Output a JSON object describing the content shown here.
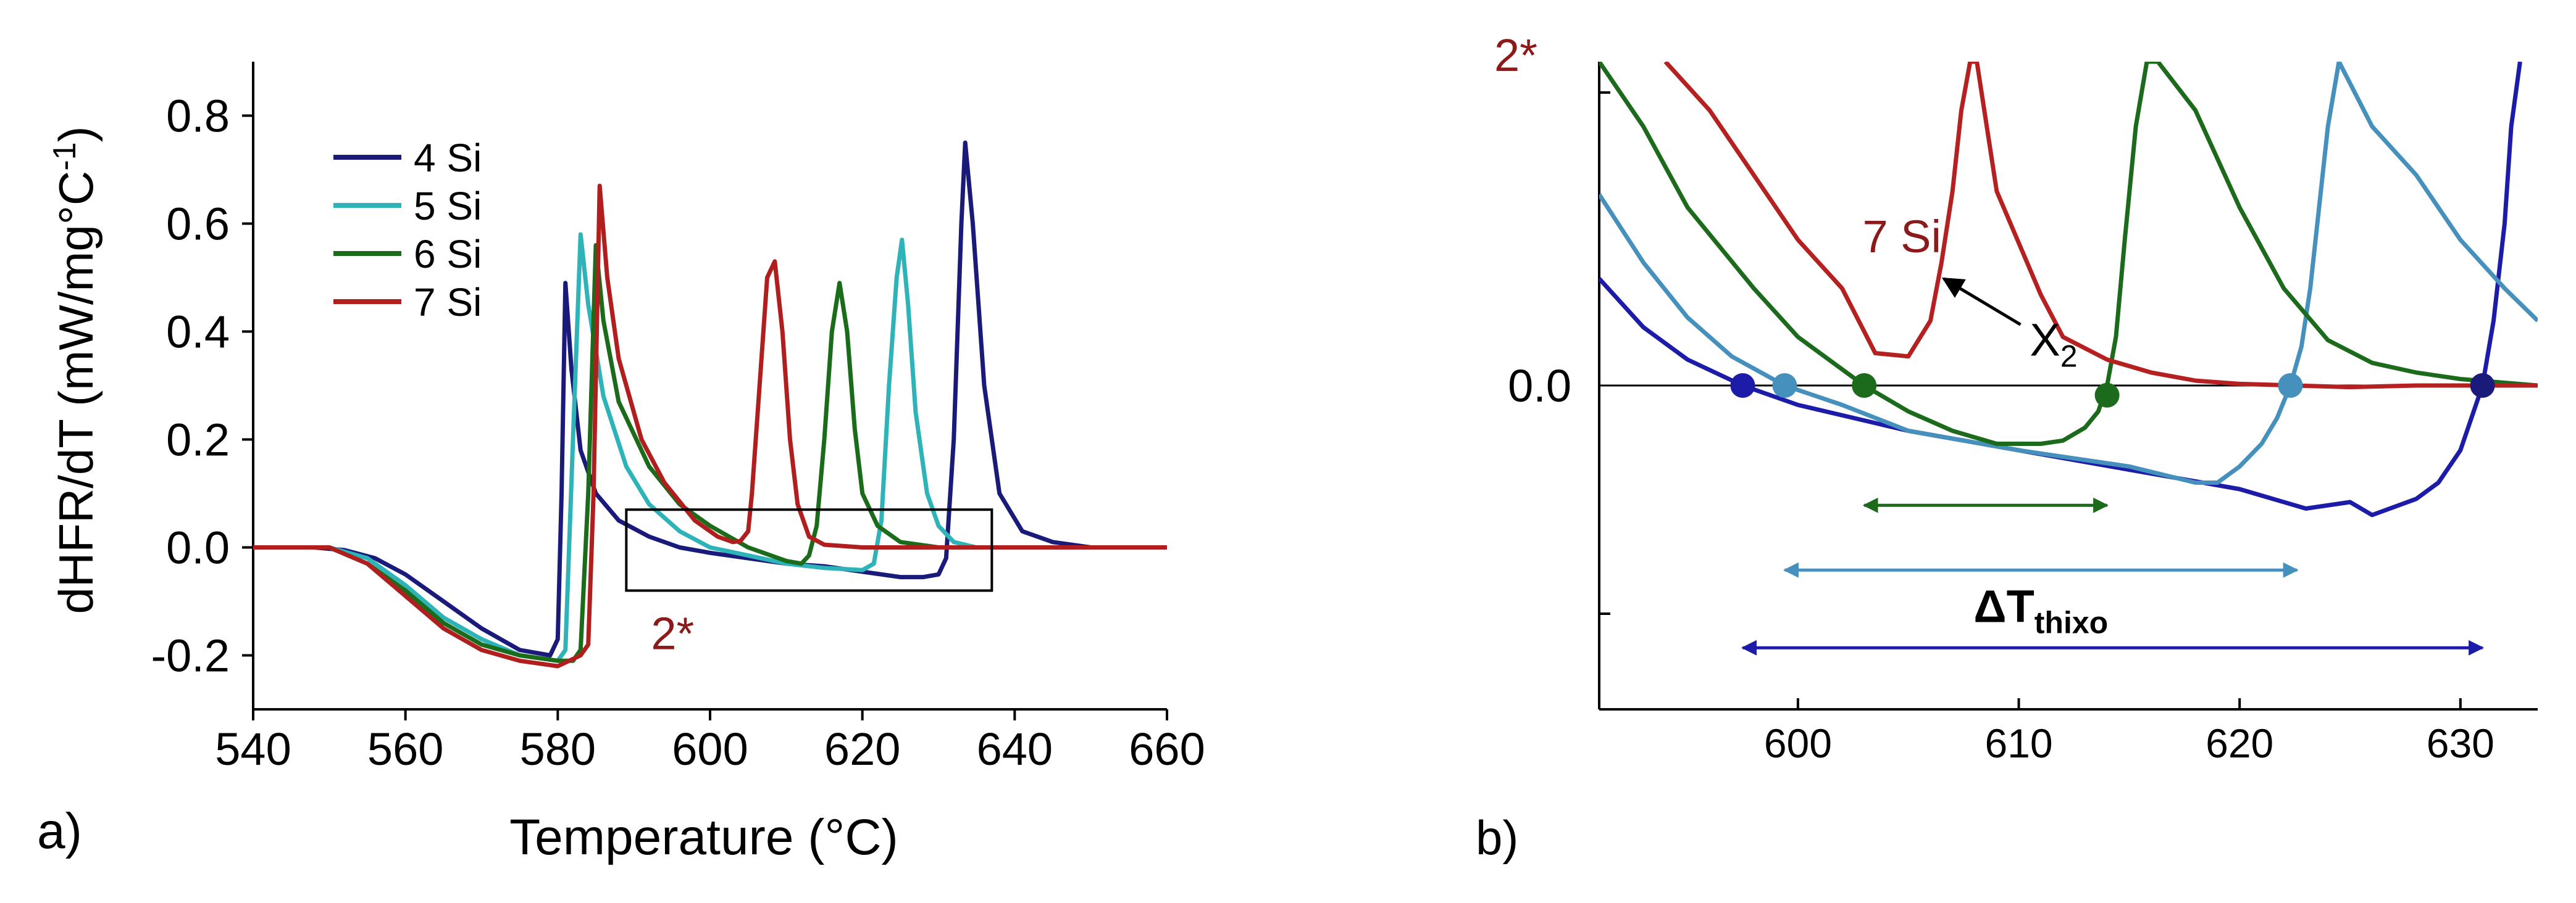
{
  "colors": {
    "s4": "#1a1a7a",
    "s5": "#2db3b8",
    "s6": "#1a6b1a",
    "s7": "#b01e1e",
    "s4_b": "#1c1ca8",
    "s5_b": "#4590bd",
    "s6_b": "#1c6b1c",
    "s7_b": "#b52020",
    "dark_red_label": "#8b1a1a",
    "axis": "#000000"
  },
  "panel_labels": {
    "a": "a)",
    "b": "b)"
  },
  "chart_data": [
    {
      "id": "a",
      "type": "line",
      "xlabel": "Temperature (°C)",
      "ylabel": "dHFR/dT (mW/mg°C",
      "ylabel_sup": "-1",
      "ylabel_close": ")",
      "xlim": [
        540,
        660
      ],
      "ylim": [
        -0.3,
        0.9
      ],
      "xticks": [
        540,
        560,
        580,
        600,
        620,
        640,
        660
      ],
      "yticks": [
        -0.2,
        0.0,
        0.2,
        0.4,
        0.6,
        0.8
      ],
      "ytick_labels": [
        "-0.2",
        "0.0",
        "0.2",
        "0.4",
        "0.6",
        "0.8"
      ],
      "inset_box": {
        "x": [
          589,
          637
        ],
        "y": [
          -0.08,
          0.07
        ],
        "label": "2*"
      },
      "series": [
        {
          "name": "4 Si",
          "color_key": "s4",
          "x": [
            540,
            548,
            552,
            556,
            560,
            565,
            570,
            575,
            579,
            580,
            580.5,
            581,
            581.8,
            583,
            585,
            588,
            592,
            596,
            600,
            605,
            610,
            615,
            620,
            625,
            628,
            630,
            631,
            632,
            633,
            633.5,
            634.5,
            636,
            638,
            641,
            645,
            650,
            660
          ],
          "y": [
            0,
            0,
            -0.005,
            -0.02,
            -0.05,
            -0.1,
            -0.15,
            -0.19,
            -0.2,
            -0.17,
            0.1,
            0.49,
            0.33,
            0.18,
            0.1,
            0.05,
            0.02,
            0.0,
            -0.01,
            -0.02,
            -0.03,
            -0.035,
            -0.045,
            -0.055,
            -0.055,
            -0.05,
            -0.02,
            0.2,
            0.6,
            0.75,
            0.6,
            0.3,
            0.1,
            0.03,
            0.01,
            0,
            0
          ]
        },
        {
          "name": "5 Si",
          "color_key": "s5",
          "x": [
            540,
            550,
            555,
            560,
            565,
            570,
            575,
            580,
            581,
            582,
            583,
            584,
            586,
            589,
            592,
            596,
            600,
            605,
            610,
            615,
            620,
            621.5,
            622.5,
            623.5,
            624.5,
            625.2,
            626,
            627,
            628.5,
            630,
            632,
            635,
            640,
            660
          ],
          "y": [
            0,
            0,
            -0.02,
            -0.07,
            -0.13,
            -0.17,
            -0.2,
            -0.21,
            -0.19,
            0.2,
            0.58,
            0.45,
            0.28,
            0.15,
            0.08,
            0.03,
            0.0,
            -0.015,
            -0.03,
            -0.038,
            -0.042,
            -0.03,
            0.05,
            0.3,
            0.5,
            0.57,
            0.45,
            0.25,
            0.1,
            0.04,
            0.01,
            0,
            0,
            0
          ]
        },
        {
          "name": "6 Si",
          "color_key": "s6",
          "x": [
            540,
            550,
            555,
            560,
            565,
            570,
            575,
            580,
            582,
            583,
            584,
            585,
            586,
            588,
            592,
            596,
            600,
            605,
            610,
            612,
            613,
            614,
            615,
            616,
            617,
            618,
            619,
            620,
            622,
            625,
            630,
            640,
            660
          ],
          "y": [
            0,
            0,
            -0.03,
            -0.08,
            -0.14,
            -0.18,
            -0.2,
            -0.21,
            -0.21,
            -0.19,
            0.1,
            0.56,
            0.42,
            0.27,
            0.15,
            0.08,
            0.04,
            0.0,
            -0.025,
            -0.03,
            -0.015,
            0.04,
            0.2,
            0.4,
            0.49,
            0.4,
            0.22,
            0.1,
            0.04,
            0.01,
            0,
            0,
            0
          ]
        },
        {
          "name": "7 Si",
          "color_key": "s7",
          "x": [
            540,
            550,
            555,
            560,
            565,
            570,
            575,
            580,
            583,
            584,
            584.7,
            585.5,
            586.5,
            588,
            591,
            594,
            598,
            601,
            603,
            604,
            605,
            605.5,
            606.5,
            607.5,
            608.5,
            609.5,
            610.5,
            611.5,
            613,
            615,
            620,
            660
          ],
          "y": [
            0,
            0,
            -0.03,
            -0.09,
            -0.15,
            -0.19,
            -0.21,
            -0.22,
            -0.2,
            -0.18,
            0.1,
            0.67,
            0.5,
            0.35,
            0.2,
            0.12,
            0.05,
            0.02,
            0.01,
            0.012,
            0.03,
            0.1,
            0.3,
            0.5,
            0.53,
            0.4,
            0.2,
            0.08,
            0.02,
            0.005,
            0,
            0
          ]
        }
      ]
    },
    {
      "id": "b",
      "type": "line",
      "title": "2*",
      "xlim": [
        591,
        633.5
      ],
      "ylim": [
        -1.0,
        1.0
      ],
      "xticks": [
        600,
        610,
        620,
        630
      ],
      "yticks": [
        0.0
      ],
      "ytick_labels": [
        "0.0"
      ],
      "annotations": [
        {
          "label": "7 Si",
          "x": 606,
          "y": 0.45
        },
        {
          "label": "X",
          "sub": "2",
          "x": 610.5,
          "y": 0.15,
          "arrow_to_x": 606.6,
          "arrow_to_y": 0.33
        },
        {
          "label": "ΔT",
          "sub": "thixo",
          "x": 611,
          "y": -0.73
        }
      ],
      "ranges": [
        {
          "color_key": "s6_b",
          "x0": 603,
          "x1": 614,
          "y": -0.37
        },
        {
          "color_key": "s5_b",
          "x0": 599.4,
          "x1": 622.6,
          "y": -0.57
        },
        {
          "color_key": "s4_b",
          "x0": 597.5,
          "x1": 631,
          "y": -0.81
        }
      ],
      "series": [
        {
          "name": "4 Si",
          "color_key": "s4_b",
          "x": [
            591,
            593,
            595,
            597.5,
            600,
            605,
            610,
            615,
            620,
            623,
            625,
            626,
            628,
            629,
            630,
            630.5,
            631,
            631.5,
            632,
            632.3,
            632.7
          ],
          "y": [
            0.33,
            0.18,
            0.08,
            0.0,
            -0.06,
            -0.14,
            -0.2,
            -0.26,
            -0.32,
            -0.38,
            -0.36,
            -0.4,
            -0.35,
            -0.3,
            -0.2,
            -0.1,
            0.0,
            0.2,
            0.5,
            0.8,
            1.0
          ]
        },
        {
          "name": "5 Si",
          "color_key": "s5_b",
          "x": [
            591,
            593,
            595,
            597,
            599.4,
            602,
            605,
            610,
            615,
            618,
            619,
            620,
            621,
            621.7,
            622.3,
            622.8,
            623.2,
            623.6,
            624,
            624.5,
            626,
            628,
            630,
            632,
            633.5
          ],
          "y": [
            0.59,
            0.38,
            0.21,
            0.09,
            0.0,
            -0.06,
            -0.14,
            -0.2,
            -0.25,
            -0.3,
            -0.3,
            -0.25,
            -0.18,
            -0.1,
            0.0,
            0.12,
            0.3,
            0.55,
            0.8,
            1.0,
            0.8,
            0.65,
            0.45,
            0.3,
            0.2
          ]
        },
        {
          "name": "6 Si",
          "color_key": "s6_b",
          "x": [
            591,
            593,
            595,
            598,
            600,
            603,
            605,
            607,
            609,
            611,
            612,
            613,
            613.6,
            614,
            614.4,
            614.8,
            615.3,
            615.8,
            616.3,
            618,
            620,
            622,
            624,
            626,
            628,
            630,
            633.5
          ],
          "y": [
            1.0,
            0.8,
            0.55,
            0.3,
            0.15,
            0.0,
            -0.08,
            -0.14,
            -0.18,
            -0.18,
            -0.17,
            -0.13,
            -0.08,
            0.0,
            0.15,
            0.45,
            0.8,
            1.0,
            1.0,
            0.85,
            0.55,
            0.3,
            0.14,
            0.07,
            0.04,
            0.02,
            0.0
          ]
        },
        {
          "name": "7 Si",
          "color_key": "s7_b",
          "x": [
            594,
            596,
            598,
            600,
            602,
            603.5,
            605,
            606,
            606.5,
            607,
            607.4,
            607.8,
            608.1,
            609,
            611,
            612,
            614,
            616,
            618,
            620,
            622.5,
            625,
            628,
            633.5
          ],
          "y": [
            1.0,
            0.85,
            0.65,
            0.45,
            0.3,
            0.1,
            0.09,
            0.2,
            0.38,
            0.6,
            0.85,
            1.0,
            1.0,
            0.6,
            0.28,
            0.15,
            0.08,
            0.04,
            0.015,
            0.005,
            0.0,
            -0.005,
            0.0,
            0.0
          ]
        }
      ],
      "markers": [
        {
          "color_key": "s4_b",
          "x": 597.5,
          "y": 0.0
        },
        {
          "color_key": "s5_b",
          "x": 599.4,
          "y": 0.0
        },
        {
          "color_key": "s6_b",
          "x": 603,
          "y": 0.0
        },
        {
          "color_key": "s6_b",
          "x": 614,
          "y": -0.03
        },
        {
          "color_key": "s5_b",
          "x": 622.3,
          "y": 0.0
        },
        {
          "color_key": "s4",
          "x": 631,
          "y": 0.0
        }
      ]
    }
  ]
}
